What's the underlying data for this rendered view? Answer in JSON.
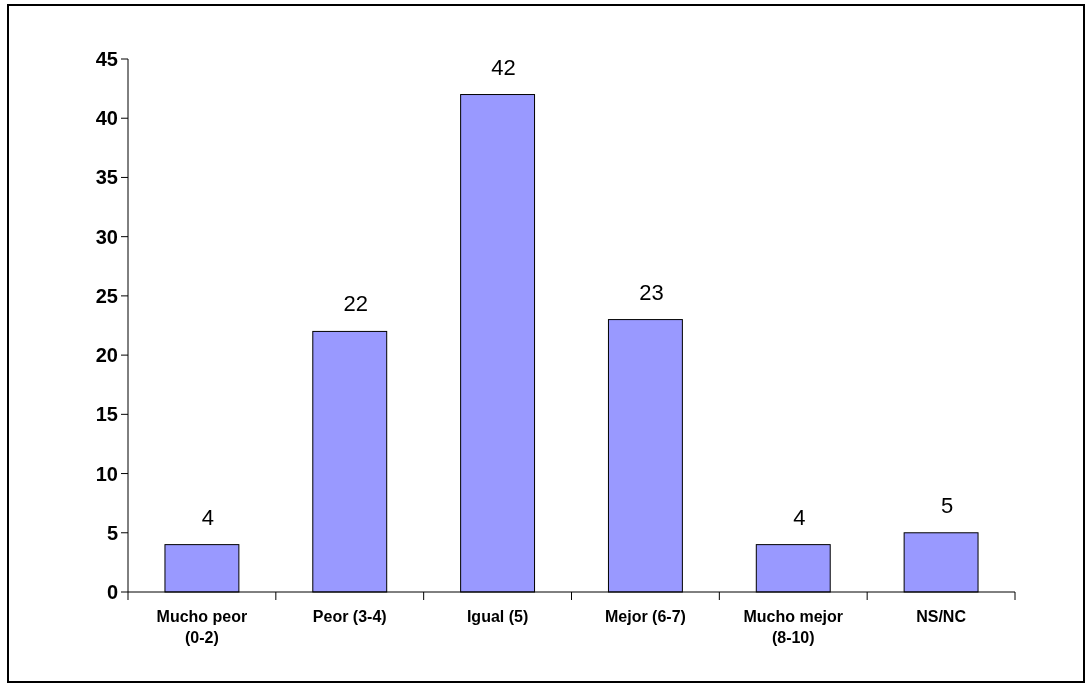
{
  "chart_data": {
    "type": "bar",
    "categories": [
      "Mucho peor (0-2)",
      "Peor (3-4)",
      "Igual (5)",
      "Mejor (6-7)",
      "Mucho mejor (8-10)",
      "NS/NC"
    ],
    "values": [
      4,
      22,
      42,
      23,
      4,
      5
    ],
    "color": "#9999ff",
    "ylim": [
      0,
      45
    ],
    "yticks": [
      0,
      5,
      10,
      15,
      20,
      25,
      30,
      35,
      40,
      45
    ],
    "grid": false,
    "data_labels": true
  }
}
